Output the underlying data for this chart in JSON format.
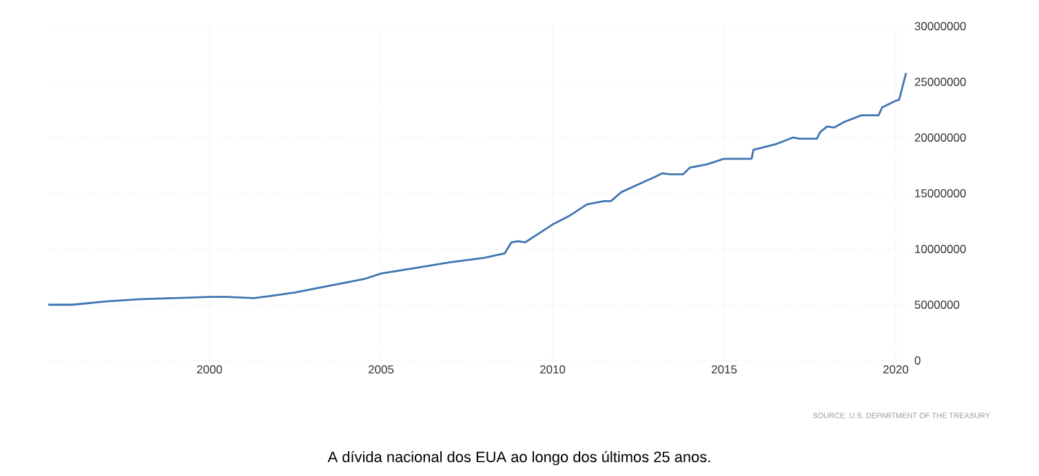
{
  "chart_data": {
    "type": "line",
    "x": [
      1995.3,
      1996.0,
      1997.0,
      1998.0,
      1999.0,
      2000.0,
      2000.5,
      2001.3,
      2001.8,
      2002.5,
      2003.5,
      2004.5,
      2005.0,
      2006.0,
      2007.0,
      2008.0,
      2008.6,
      2008.8,
      2009.0,
      2009.2,
      2009.5,
      2010.0,
      2010.5,
      2011.0,
      2011.5,
      2011.7,
      2012.0,
      2012.5,
      2013.0,
      2013.2,
      2013.4,
      2013.8,
      2014.0,
      2014.5,
      2015.0,
      2015.8,
      2015.85,
      2016.5,
      2017.0,
      2017.2,
      2017.7,
      2017.8,
      2018.0,
      2018.2,
      2018.5,
      2019.0,
      2019.5,
      2019.6,
      2020.0,
      2020.1,
      2020.3
    ],
    "series": [
      {
        "color": "#3d74b0",
        "values": [
          5000000,
          5000000,
          5300000,
          5500000,
          5600000,
          5700000,
          5700000,
          5600000,
          5800000,
          6100000,
          6700000,
          7300000,
          7800000,
          8300000,
          8800000,
          9200000,
          9600000,
          10600000,
          10700000,
          10600000,
          11200000,
          12200000,
          13000000,
          14000000,
          14300000,
          14300000,
          15100000,
          15800000,
          16500000,
          16800000,
          16700000,
          16700000,
          17300000,
          17600000,
          18100000,
          18100000,
          18900000,
          19400000,
          20000000,
          19900000,
          19900000,
          20500000,
          21000000,
          20900000,
          21400000,
          22000000,
          22000000,
          22700000,
          23300000,
          23400000,
          25800000
        ]
      }
    ],
    "xlim": [
      1995.3,
      2020.4
    ],
    "xticks": [
      2000,
      2005,
      2010,
      2015,
      2020
    ],
    "ylim": [
      0,
      30000000
    ],
    "yticks": [
      0,
      5000000,
      10000000,
      15000000,
      20000000,
      25000000,
      30000000
    ],
    "grid": true,
    "line_style": "solid",
    "annotations": [
      "SOURCE: U.S. DEPARTMENT OF THE TREASURY",
      "A dívida nacional dos EUA ao longo dos últimos 25 anos."
    ]
  }
}
